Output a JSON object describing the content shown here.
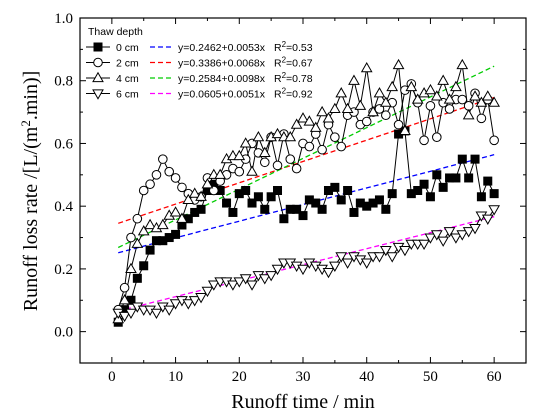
{
  "chart_data": {
    "type": "line",
    "xlabel": "Runoff time / min",
    "ylabel": "Runoff loss rate /[L/(m².min)]",
    "ylabel_main": "Runoff loss rate /[L/(m",
    "ylabel_sup": "2",
    "ylabel_tail": ".min)]",
    "xlim": [
      -5,
      65
    ],
    "ylim": [
      -0.1,
      1.0
    ],
    "xticks": [
      0,
      10,
      20,
      30,
      40,
      50,
      60
    ],
    "yticks": [
      0.0,
      0.2,
      0.4,
      0.6,
      0.8,
      1.0
    ],
    "x_tick_labels": [
      "0",
      "10",
      "20",
      "30",
      "40",
      "50",
      "60"
    ],
    "y_tick_labels": [
      "0.0",
      "0.2",
      "0.4",
      "0.6",
      "0.8",
      "1.0"
    ],
    "legend_title": "Thaw depth",
    "legend_position": "top-left",
    "x": [
      1,
      2,
      3,
      4,
      5,
      6,
      7,
      8,
      9,
      10,
      11,
      12,
      13,
      14,
      15,
      16,
      17,
      18,
      19,
      20,
      21,
      22,
      23,
      24,
      25,
      26,
      27,
      28,
      29,
      30,
      31,
      32,
      33,
      34,
      35,
      36,
      37,
      38,
      39,
      40,
      41,
      42,
      43,
      44,
      45,
      46,
      47,
      48,
      49,
      50,
      51,
      52,
      53,
      54,
      55,
      56,
      57,
      58,
      59,
      60
    ],
    "series": [
      {
        "name": "0 cm",
        "marker": "square-filled",
        "color": "#000000",
        "fit_color": "#0000ff",
        "fit_label": "y=0.2462+0.0053x",
        "r2_label": "R²=0.53",
        "fit": {
          "intercept": 0.2462,
          "slope": 0.0053
        },
        "values": [
          0.03,
          0.07,
          0.1,
          0.17,
          0.21,
          0.26,
          0.29,
          0.29,
          0.3,
          0.31,
          0.34,
          0.36,
          0.38,
          0.39,
          0.45,
          0.47,
          0.45,
          0.41,
          0.38,
          0.44,
          0.45,
          0.41,
          0.43,
          0.39,
          0.43,
          0.45,
          0.36,
          0.39,
          0.39,
          0.37,
          0.42,
          0.41,
          0.39,
          0.45,
          0.46,
          0.42,
          0.45,
          0.38,
          0.41,
          0.4,
          0.41,
          0.42,
          0.39,
          0.44,
          0.63,
          0.64,
          0.44,
          0.45,
          0.47,
          0.43,
          0.5,
          0.46,
          0.49,
          0.49,
          0.55,
          0.49,
          0.55,
          0.43,
          0.48,
          0.44
        ]
      },
      {
        "name": "2 cm",
        "marker": "circle-open",
        "color": "#000000",
        "fit_color": "#ff0000",
        "fit_label": "y=0.3386+0.0068x",
        "r2_label": "R²=0.67",
        "fit": {
          "intercept": 0.3386,
          "slope": 0.0068
        },
        "values": [
          0.07,
          0.14,
          0.3,
          0.36,
          0.45,
          0.47,
          0.5,
          0.55,
          0.51,
          0.49,
          0.46,
          0.44,
          0.42,
          0.43,
          0.49,
          0.45,
          0.48,
          0.5,
          0.52,
          0.51,
          0.55,
          0.6,
          0.57,
          0.54,
          0.62,
          0.53,
          0.63,
          0.55,
          0.52,
          0.6,
          0.59,
          0.63,
          0.58,
          0.66,
          0.62,
          0.59,
          0.69,
          0.7,
          0.66,
          0.67,
          0.7,
          0.71,
          0.69,
          0.73,
          0.66,
          0.77,
          0.79,
          0.73,
          0.61,
          0.72,
          0.62,
          0.73,
          0.71,
          0.74,
          0.74,
          0.72,
          0.76,
          0.68,
          0.74,
          0.61
        ]
      },
      {
        "name": "4 cm",
        "marker": "triangle-up-open",
        "color": "#000000",
        "fit_color": "#00cc00",
        "fit_label": "y=0.2584+0.0098x",
        "r2_label": "R²=0.78",
        "fit": {
          "intercept": 0.2584,
          "slope": 0.0098
        },
        "values": [
          0.04,
          0.1,
          0.2,
          0.28,
          0.32,
          0.34,
          0.33,
          0.34,
          0.37,
          0.38,
          0.36,
          0.42,
          0.44,
          0.43,
          0.47,
          0.5,
          0.5,
          0.55,
          0.56,
          0.56,
          0.6,
          0.51,
          0.62,
          0.57,
          0.62,
          0.63,
          0.62,
          0.62,
          0.66,
          0.68,
          0.67,
          0.65,
          0.7,
          0.68,
          0.71,
          0.76,
          0.71,
          0.8,
          0.72,
          0.84,
          0.7,
          0.76,
          0.73,
          0.78,
          0.85,
          0.64,
          0.78,
          0.74,
          0.76,
          0.77,
          0.75,
          0.8,
          0.74,
          0.78,
          0.85,
          0.69,
          0.75,
          0.73,
          0.75,
          0.73
        ]
      },
      {
        "name": "6 cm",
        "marker": "triangle-down-open",
        "color": "#000000",
        "fit_color": "#ff00ff",
        "fit_label": "y=0.0605+0.0051x",
        "r2_label": "R²=0.92",
        "fit": {
          "intercept": 0.0605,
          "slope": 0.0051
        },
        "values": [
          0.06,
          0.05,
          0.06,
          0.08,
          0.07,
          0.07,
          0.06,
          0.08,
          0.07,
          0.09,
          0.1,
          0.09,
          0.1,
          0.11,
          0.13,
          0.15,
          0.16,
          0.16,
          0.15,
          0.16,
          0.17,
          0.15,
          0.18,
          0.17,
          0.18,
          0.2,
          0.22,
          0.22,
          0.21,
          0.2,
          0.22,
          0.21,
          0.2,
          0.19,
          0.21,
          0.24,
          0.22,
          0.24,
          0.23,
          0.22,
          0.24,
          0.24,
          0.26,
          0.24,
          0.27,
          0.26,
          0.28,
          0.28,
          0.28,
          0.3,
          0.31,
          0.29,
          0.32,
          0.3,
          0.31,
          0.32,
          0.33,
          0.37,
          0.36,
          0.39
        ]
      }
    ]
  }
}
